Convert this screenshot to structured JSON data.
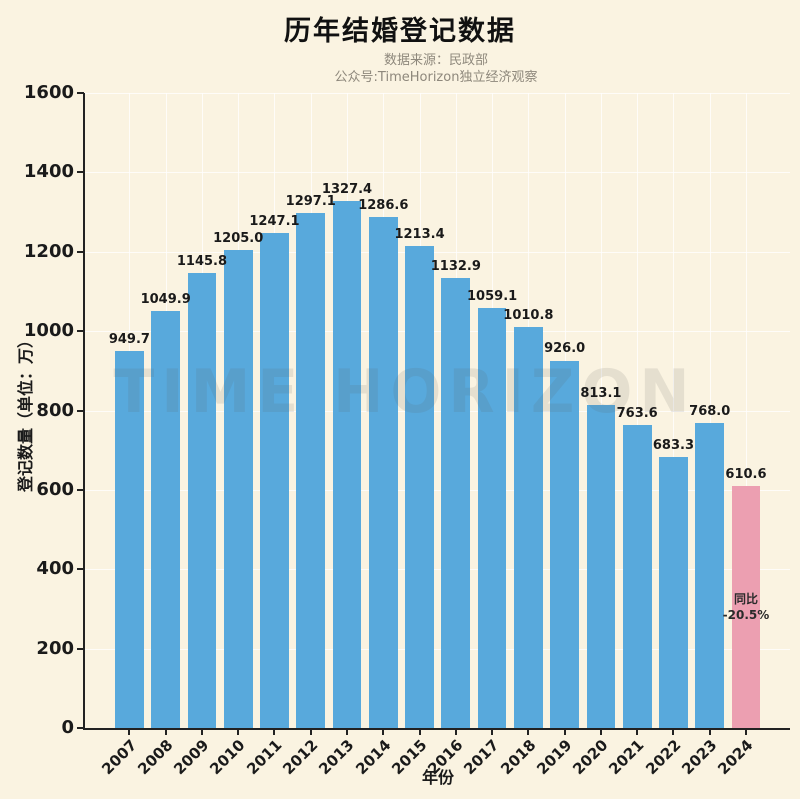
{
  "title": "历年结婚登记数据",
  "subtitle1": "数据来源：民政部",
  "subtitle2": "公众号:TimeHorizon独立经济观察",
  "watermark": "TIME HORIZON",
  "colors": {
    "background": "#faf3e1",
    "bar": "#58a9dc",
    "bar_highlight": "#ec9fb1",
    "axis": "#222222",
    "text": "#1a1a1a",
    "subtitle_text": "#8e887c",
    "grid": "rgba(255,255,255,0.75)"
  },
  "chart_data": {
    "type": "bar",
    "categories": [
      "2007",
      "2008",
      "2009",
      "2010",
      "2011",
      "2012",
      "2013",
      "2014",
      "2015",
      "2016",
      "2017",
      "2018",
      "2019",
      "2020",
      "2021",
      "2022",
      "2023",
      "2024"
    ],
    "values": [
      949.7,
      1049.9,
      1145.8,
      1205.0,
      1247.1,
      1297.1,
      1327.4,
      1286.6,
      1213.4,
      1132.9,
      1059.1,
      1010.8,
      926.0,
      813.1,
      763.6,
      683.3,
      768.0,
      610.6
    ],
    "title": "历年结婚登记数据",
    "xlabel": "年份",
    "ylabel": "登记数量（单位：万）",
    "ylim": [
      0,
      1600
    ],
    "yticks": [
      0,
      200,
      400,
      600,
      800,
      1000,
      1200,
      1400,
      1600
    ],
    "grid": true,
    "legend": false,
    "value_labels": true,
    "highlight_index": 17,
    "annotation": {
      "line1": "同比",
      "line2": "-20.5%",
      "target_category": "2024"
    }
  }
}
